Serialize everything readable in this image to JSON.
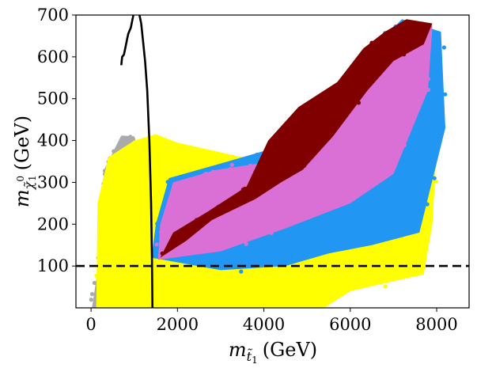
{
  "chart_data": {
    "type": "scatter",
    "xlabel": "m_{t̃1} (GeV)",
    "xlabel_main": "m",
    "xlabel_sub": "t̃",
    "xlabel_subsub": "1",
    "xlabel_unit": "(GeV)",
    "ylabel_main": "m",
    "ylabel_sub": "χ̃",
    "ylabel_sup": "0",
    "ylabel_subsub": "1",
    "ylabel_unit": "(GeV)",
    "xlim": [
      -350,
      8750
    ],
    "ylim": [
      0,
      700
    ],
    "xticks": [
      0,
      2000,
      4000,
      6000,
      8000
    ],
    "xtick_labels": [
      "0",
      "2000",
      "4000",
      "6000",
      "8000"
    ],
    "yticks": [
      100,
      200,
      300,
      400,
      500,
      600,
      700
    ],
    "ytick_labels": [
      "100",
      "200",
      "300",
      "400",
      "500",
      "600",
      "700"
    ],
    "grid": false,
    "colors": {
      "gray": "#aaaaaa",
      "yellow": "#ffff00",
      "blue": "#2196f3",
      "violet": "#da70d6",
      "darkred": "#800000",
      "line": "#000000"
    },
    "series": [
      {
        "name": "gray",
        "color": "#aaaaaa",
        "region": [
          [
            20,
            0
          ],
          [
            200,
            120
          ],
          [
            300,
            330
          ],
          [
            700,
            412
          ],
          [
            1000,
            410
          ],
          [
            1200,
            300
          ],
          [
            800,
            120
          ],
          [
            500,
            0
          ]
        ]
      },
      {
        "name": "yellow",
        "color": "#ffff00",
        "region": [
          [
            120,
            0
          ],
          [
            150,
            250
          ],
          [
            400,
            360
          ],
          [
            1000,
            400
          ],
          [
            1500,
            415
          ],
          [
            2000,
            395
          ],
          [
            3500,
            360
          ],
          [
            5000,
            360
          ],
          [
            6500,
            440
          ],
          [
            7700,
            600
          ],
          [
            8100,
            560
          ],
          [
            7900,
            200
          ],
          [
            7700,
            80
          ],
          [
            6000,
            40
          ],
          [
            5400,
            0
          ]
        ]
      },
      {
        "name": "blue",
        "color": "#2196f3",
        "region": [
          [
            1400,
            120
          ],
          [
            1500,
            200
          ],
          [
            1800,
            310
          ],
          [
            3000,
            345
          ],
          [
            4500,
            390
          ],
          [
            6000,
            520
          ],
          [
            6700,
            640
          ],
          [
            7200,
            690
          ],
          [
            8100,
            660
          ],
          [
            8200,
            430
          ],
          [
            7600,
            180
          ],
          [
            6500,
            150
          ],
          [
            5500,
            130
          ],
          [
            4500,
            100
          ],
          [
            3000,
            90
          ]
        ]
      },
      {
        "name": "violet",
        "color": "#da70d6",
        "region": [
          [
            1550,
            115
          ],
          [
            1600,
            200
          ],
          [
            1900,
            300
          ],
          [
            2900,
            330
          ],
          [
            4200,
            350
          ],
          [
            5800,
            470
          ],
          [
            6500,
            600
          ],
          [
            7100,
            680
          ],
          [
            7900,
            675
          ],
          [
            7800,
            520
          ],
          [
            7000,
            320
          ],
          [
            6000,
            250
          ],
          [
            4500,
            190
          ],
          [
            3000,
            135
          ]
        ]
      },
      {
        "name": "darkred",
        "color": "#800000",
        "region": [
          [
            1600,
            120
          ],
          [
            1900,
            180
          ],
          [
            2700,
            230
          ],
          [
            3600,
            290
          ],
          [
            4100,
            400
          ],
          [
            4800,
            480
          ],
          [
            5700,
            540
          ],
          [
            6300,
            620
          ],
          [
            6800,
            660
          ],
          [
            7300,
            690
          ],
          [
            7900,
            680
          ],
          [
            7700,
            630
          ],
          [
            7000,
            590
          ],
          [
            6400,
            520
          ],
          [
            5600,
            410
          ],
          [
            4900,
            330
          ],
          [
            4400,
            300
          ],
          [
            3800,
            260
          ],
          [
            2800,
            210
          ],
          [
            2200,
            160
          ]
        ]
      }
    ],
    "lines": [
      {
        "name": "curve-top-left",
        "color": "#000000",
        "style": "solid",
        "points": [
          [
            700,
            580
          ],
          [
            720,
            600
          ],
          [
            760,
            605
          ],
          [
            790,
            620
          ],
          [
            830,
            640
          ],
          [
            860,
            655
          ],
          [
            920,
            670
          ],
          [
            980,
            700
          ]
        ]
      },
      {
        "name": "vertical-boundary",
        "color": "#000000",
        "style": "solid",
        "points": [
          [
            1120,
            700
          ],
          [
            1160,
            680
          ],
          [
            1200,
            640
          ],
          [
            1250,
            590
          ],
          [
            1300,
            520
          ],
          [
            1350,
            400
          ],
          [
            1390,
            250
          ],
          [
            1410,
            120
          ],
          [
            1420,
            0
          ]
        ]
      },
      {
        "name": "lsp-100",
        "color": "#000000",
        "style": "dashed",
        "points": [
          [
            -350,
            100
          ],
          [
            8750,
            100
          ]
        ]
      }
    ]
  }
}
